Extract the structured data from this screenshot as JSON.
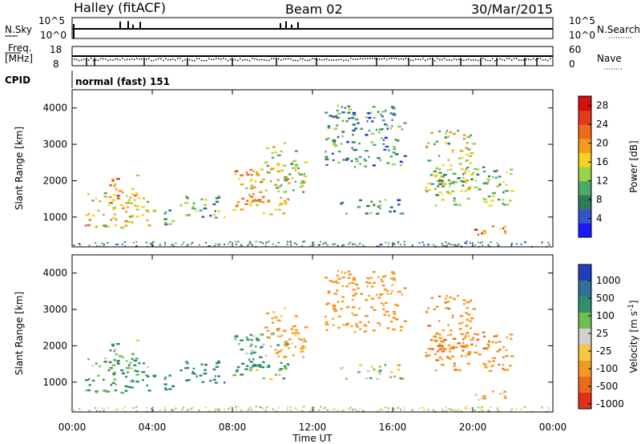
{
  "header": {
    "station": "Halley (fitACF)",
    "beam": "Beam 02",
    "date": "30/Mar/2015"
  },
  "top_panels": {
    "nsky_label": "N.Sky",
    "nsky_ticks": [
      "10^5",
      "10^0"
    ],
    "nsearch_label": "N.Search",
    "nsearch_ticks": [
      "10^5",
      "10^0"
    ],
    "freq_label": "Freq.",
    "freq_unit": "[MHz]",
    "freq_ticks": [
      "18",
      "8"
    ],
    "nave_label": "Nave",
    "nave_ticks": [
      "60",
      "0"
    ],
    "cpid_label": "CPID",
    "cpid_value": "normal (fast) 151"
  },
  "x_axis": {
    "label": "Time UT",
    "ticks": [
      "00:00",
      "04:00",
      "08:00",
      "12:00",
      "16:00",
      "20:00",
      "00:00"
    ]
  },
  "y_axis": {
    "label": "Slant Range [km]",
    "ticks": [
      "1000",
      "2000",
      "3000",
      "4000"
    ]
  },
  "colorbars": {
    "power": {
      "label": "Power [dB]",
      "ticks": [
        "4",
        "8",
        "12",
        "16",
        "20",
        "24",
        "28"
      ],
      "colors": [
        "#1a1aff",
        "#3355cc",
        "#2e7d5a",
        "#4ea86a",
        "#9ad24a",
        "#f6d21e",
        "#f39c1f",
        "#ee6a1c",
        "#e23a1a",
        "#d41010"
      ]
    },
    "velocity": {
      "label": "Velocity [m s",
      "label_sup": "-1",
      "label_end": "]",
      "ticks": [
        "1000",
        "500",
        "100",
        "25",
        "-25",
        "-100",
        "-500",
        "-1000"
      ],
      "colors": [
        "#1f3fbf",
        "#2f6f9a",
        "#2f8f6a",
        "#6fbf4f",
        "#cfcfcf",
        "#f6c744",
        "#f39a24",
        "#ec6a1a",
        "#e2301a"
      ]
    }
  },
  "chart_data": [
    {
      "type": "heatmap",
      "title": "Power",
      "xlabel": "Time UT",
      "ylabel": "Slant Range [km]",
      "xlim": [
        0,
        24
      ],
      "ylim": [
        180,
        4500
      ],
      "colorbar_range": [
        0,
        30
      ],
      "regions": [
        {
          "t": [
            0.6,
            3.8
          ],
          "r": [
            700,
            1700
          ],
          "level": 16
        },
        {
          "t": [
            1.8,
            3.2
          ],
          "r": [
            1400,
            2200
          ],
          "level": 20
        },
        {
          "t": [
            4.0,
            5.0
          ],
          "r": [
            800,
            1300
          ],
          "level": 10
        },
        {
          "t": [
            5.2,
            7.6
          ],
          "r": [
            1000,
            1600
          ],
          "level": 10
        },
        {
          "t": [
            8.0,
            10.8
          ],
          "r": [
            1100,
            2400
          ],
          "level": 18
        },
        {
          "t": [
            9.6,
            11.6
          ],
          "r": [
            1700,
            3100
          ],
          "level": 14
        },
        {
          "t": [
            12.6,
            16.6
          ],
          "r": [
            2400,
            4100
          ],
          "level": 8
        },
        {
          "t": [
            13.2,
            16.4
          ],
          "r": [
            1100,
            1500
          ],
          "level": 8
        },
        {
          "t": [
            17.6,
            20.0
          ],
          "r": [
            1700,
            3400
          ],
          "level": 14
        },
        {
          "t": [
            18.0,
            22.0
          ],
          "r": [
            1300,
            2400
          ],
          "level": 12
        },
        {
          "t": [
            20.0,
            21.8
          ],
          "r": [
            500,
            800
          ],
          "level": 22
        }
      ]
    },
    {
      "type": "heatmap",
      "title": "Velocity",
      "xlabel": "Time UT",
      "ylabel": "Slant Range [km]",
      "xlim": [
        0,
        24
      ],
      "ylim": [
        180,
        4500
      ],
      "colorbar_range": [
        -1000,
        1000
      ],
      "regions": [
        {
          "t": [
            0.6,
            3.8
          ],
          "r": [
            700,
            1700
          ],
          "velocity": 150
        },
        {
          "t": [
            1.8,
            3.2
          ],
          "r": [
            1400,
            2200
          ],
          "velocity": 100
        },
        {
          "t": [
            4.0,
            5.0
          ],
          "r": [
            800,
            1300
          ],
          "velocity": 300
        },
        {
          "t": [
            5.2,
            7.6
          ],
          "r": [
            1000,
            1600
          ],
          "velocity": 400
        },
        {
          "t": [
            8.0,
            10.8
          ],
          "r": [
            1100,
            2400
          ],
          "velocity": 100
        },
        {
          "t": [
            9.6,
            11.6
          ],
          "r": [
            1700,
            3100
          ],
          "velocity": -200
        },
        {
          "t": [
            12.6,
            16.6
          ],
          "r": [
            2400,
            4100
          ],
          "velocity": -300
        },
        {
          "t": [
            13.2,
            16.4
          ],
          "r": [
            1100,
            1500
          ],
          "velocity": 0
        },
        {
          "t": [
            17.6,
            20.0
          ],
          "r": [
            1700,
            3400
          ],
          "velocity": -400
        },
        {
          "t": [
            18.0,
            22.0
          ],
          "r": [
            1300,
            2400
          ],
          "velocity": -450
        },
        {
          "t": [
            20.0,
            21.8
          ],
          "r": [
            500,
            800
          ],
          "velocity": -150
        }
      ]
    }
  ]
}
